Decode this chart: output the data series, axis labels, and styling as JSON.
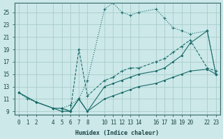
{
  "xlabel": "Humidex (Indice chaleur)",
  "bg_color": "#cce8e8",
  "grid_color": "#aacccc",
  "line_color": "#1a6b6b",
  "xlim": [
    -0.5,
    23.5
  ],
  "ylim": [
    8.5,
    26.5
  ],
  "xticks": [
    0,
    1,
    2,
    4,
    5,
    6,
    7,
    8,
    10,
    11,
    12,
    13,
    14,
    16,
    17,
    18,
    19,
    20,
    22,
    23
  ],
  "yticks": [
    9,
    11,
    13,
    15,
    17,
    19,
    21,
    23,
    25
  ],
  "series_dotted_x": [
    0,
    1,
    2,
    4,
    5,
    6,
    7,
    8,
    10,
    11,
    12,
    13,
    14,
    16,
    17,
    18,
    19,
    20,
    22,
    23
  ],
  "series_dotted_y": [
    12,
    11,
    10.5,
    9.5,
    9.5,
    10,
    11,
    14,
    25.5,
    26.5,
    25,
    24.5,
    25,
    25.5,
    24,
    22.5,
    22,
    21.5,
    22,
    15
  ],
  "series_dashed_x": [
    5,
    6,
    7,
    8,
    10,
    11,
    12,
    13,
    14,
    16,
    17,
    18,
    19,
    20,
    22,
    23
  ],
  "series_dashed_y": [
    9.5,
    9,
    19,
    11.5,
    14,
    14.5,
    15.5,
    16,
    16,
    17,
    17.5,
    18.5,
    19.5,
    20.5,
    16,
    15.5
  ],
  "series_solid1_x": [
    0,
    2,
    4,
    5,
    6,
    7,
    8,
    10,
    11,
    12,
    13,
    14,
    16,
    17,
    18,
    19,
    20,
    22,
    23
  ],
  "series_solid1_y": [
    12,
    10.5,
    9.5,
    9.5,
    9,
    11,
    9,
    13,
    13.5,
    14,
    14.5,
    15,
    15.5,
    16,
    17,
    18,
    20,
    22,
    15
  ],
  "series_solid2_x": [
    0,
    2,
    4,
    5,
    6,
    7,
    8,
    10,
    11,
    12,
    13,
    14,
    16,
    17,
    18,
    19,
    20,
    22,
    23
  ],
  "series_solid2_y": [
    12,
    10.5,
    9.5,
    9,
    9,
    11,
    9,
    11,
    11.5,
    12,
    12.5,
    13,
    13.5,
    14,
    14.5,
    15,
    15.5,
    15.8,
    15
  ]
}
